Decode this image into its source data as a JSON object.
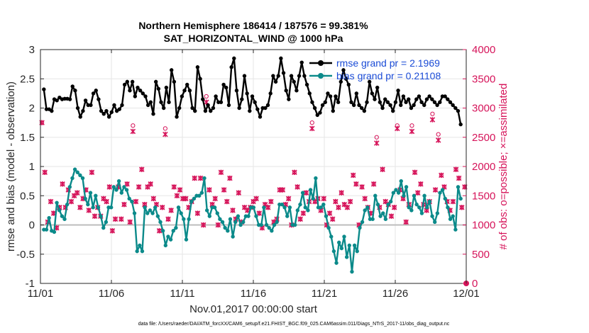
{
  "chart_data": {
    "type": "line",
    "title_line1": "Northern Hemisphere 186414 / 187576 = 99.381%",
    "title_line2": "SAT_HORIZONTAL_WIND @ 1000 hPa",
    "xlabel": "Nov.01,2017 00:00:00 start",
    "ylabel_left": "rmse and bias (model - observation)",
    "ylabel_right": "# of obs: o=possible; ×=assimilated",
    "footnote": "data file: /Users/raeder/DAI/ATM_forcXX/CAM6_setup/f.e21.FHIST_BGC.f09_025.CAM6assim.011/Diags_NTrS_2017-11/obs_diag_output.nc",
    "x_ticks": [
      "11/01",
      "11/06",
      "11/11",
      "11/16",
      "11/21",
      "11/26",
      "12/01"
    ],
    "x_tick_days": [
      0,
      5,
      10,
      15,
      20,
      25,
      30
    ],
    "xlim": [
      0,
      30
    ],
    "y_left_ticks": [
      "-1",
      "-0.5",
      "0",
      "0.5",
      "1",
      "1.5",
      "2",
      "2.5",
      "3"
    ],
    "y_left_values": [
      -1,
      -0.5,
      0,
      0.5,
      1,
      1.5,
      2,
      2.5,
      3
    ],
    "ylim_left": [
      -1,
      3
    ],
    "y_right_ticks": [
      "0",
      "500",
      "1000",
      "1500",
      "2000",
      "2500",
      "3000",
      "3500",
      "4000"
    ],
    "y_right_values": [
      0,
      500,
      1000,
      1500,
      2000,
      2500,
      3000,
      3500,
      4000
    ],
    "ylim_right": [
      0,
      4000
    ],
    "legend": [
      {
        "name": "rmse grand pr = 2.1969",
        "color": "#000000"
      },
      {
        "name": "bias grand pr = 0.21108",
        "color": "#008080"
      }
    ],
    "colors": {
      "rmse": "#000000",
      "bias": "#0b8a8a",
      "obs": "#d6145a",
      "zero_line": "#bdbdbd",
      "grid": "#e6e6e6"
    },
    "series": [
      {
        "name": "rmse",
        "values": [
          2.32,
          1.98,
          1.98,
          1.95,
          2.15,
          2.13,
          2.18,
          2.15,
          2.16,
          2.16,
          2.15,
          2.37,
          2.3,
          2.0,
          1.85,
          1.95,
          2.13,
          2.05,
          2.05,
          2.25,
          2.3,
          2.15,
          1.95,
          1.9,
          1.95,
          1.85,
          1.93,
          2.05,
          1.95,
          1.98,
          2.05,
          2.4,
          2.45,
          2.3,
          2.45,
          2.2,
          2.35,
          2.3,
          2.25,
          2.2,
          2.05,
          2.1,
          1.9,
          2.45,
          2.33,
          2.1,
          2.0,
          2.35,
          2.1,
          2.65,
          2.45,
          1.85,
          2.0,
          2.2,
          2.3,
          2.4,
          2.3,
          2.0,
          1.95,
          2.7,
          2.5,
          2.15,
          1.95,
          2.05,
          1.95,
          2.0,
          2.2,
          2.1,
          2.1,
          2.4,
          2.35,
          2.05,
          2.7,
          2.85,
          2.3,
          2.0,
          2.15,
          2.55,
          2.25,
          1.95,
          2.2,
          2.1,
          1.98,
          1.85,
          2.0,
          2.0,
          2.05,
          2.25,
          2.55,
          2.45,
          2.55,
          2.85,
          2.6,
          2.3,
          2.15,
          2.55,
          2.45,
          2.3,
          2.55,
          2.78,
          2.55,
          2.4,
          2.25,
          2.1,
          2.0,
          1.88,
          1.92,
          2.05,
          2.1,
          2.25,
          2.2,
          1.95,
          2.2,
          2.1,
          2.45,
          2.65,
          2.5,
          2.4,
          2.1,
          2.05,
          2.25,
          2.05,
          2.0,
          1.95,
          2.1,
          2.45,
          2.25,
          2.15,
          2.35,
          2.1,
          2.0,
          2.15,
          2.1,
          2.05,
          1.95,
          2.1,
          2.3,
          2.05,
          2.2,
          2.1,
          2.15,
          2.0,
          2.05,
          2.15,
          2.2,
          2.1,
          2.05,
          2.15,
          2.2,
          2.15,
          2.1,
          2.05,
          2.1,
          2.2,
          2.2,
          2.15,
          2.1,
          2.05,
          2.0,
          1.95,
          1.72
        ]
      },
      {
        "name": "bias",
        "values": [
          -0.08,
          -0.08,
          0.12,
          -0.1,
          -0.12,
          0.38,
          0.25,
          0.15,
          0.1,
          0.35,
          0.65,
          0.8,
          0.95,
          0.9,
          0.85,
          0.8,
          0.45,
          0.35,
          0.55,
          0.3,
          0.5,
          0.3,
          0.15,
          -0.05,
          0.05,
          0.3,
          0.3,
          0.65,
          0.6,
          0.75,
          0.55,
          0.65,
          0.6,
          0.45,
          0.4,
          0.2,
          -0.45,
          -0.35,
          -0.45,
          0.3,
          0.2,
          0.25,
          0.2,
          0.3,
          0.15,
          0.05,
          -0.1,
          -0.35,
          -0.2,
          -0.25,
          -0.1,
          -0.05,
          0.3,
          0.2,
          0.1,
          -0.25,
          0.1,
          0.4,
          0.45,
          0.5,
          0.5,
          0.55,
          0.8,
          0.25,
          0.15,
          0.3,
          0.3,
          0.2,
          0.1,
          0.05,
          -0.05,
          -0.1,
          0.1,
          -0.2,
          0.05,
          0.15,
          0.0,
          0.05,
          0.15,
          0.15,
          0.3,
          0.3,
          0.15,
          0.0,
          0.0,
          0.3,
          0.0,
          -0.05,
          -0.1,
          0.0,
          0.05,
          0.35,
          0.35,
          0.3,
          0.15,
          0.3,
          0.0,
          0.0,
          0.25,
          0.35,
          0.55,
          0.3,
          0.25,
          0.6,
          0.45,
          0.8,
          0.3,
          0.3,
          0.35,
          0.15,
          -0.05,
          -0.2,
          -0.45,
          -0.65,
          -0.3,
          -0.4,
          -0.2,
          -0.55,
          -0.35,
          -0.8,
          -0.35,
          -0.45,
          -0.05,
          0.05,
          0.25,
          0.3,
          0.1,
          0.1,
          0.5,
          0.35,
          0.15,
          0.2,
          0.1,
          0.35,
          0.4,
          0.55,
          0.6,
          0.55,
          0.75,
          0.5,
          0.65,
          0.3,
          0.25,
          0.5,
          0.35,
          0.3,
          0.2,
          0.5,
          0.3,
          0.4,
          0.15,
          0.05,
          0.2,
          0.55,
          0.6,
          0.45,
          0.3,
          0.1,
          0.15,
          -0.08,
          0.65,
          0.45
        ]
      }
    ],
    "obs_possible": [
      2750,
      1900,
      1050,
      1400,
      1200,
      950,
      1300,
      1700,
      1300,
      1600,
      1400,
      1500,
      1550,
      1300,
      1450,
      1600,
      1250,
      1900,
      1150,
      1300,
      1150,
      1450,
      1400,
      1650,
      900,
      1100,
      1650,
      1100,
      1350,
      1700,
      1050,
      2700,
      1400,
      1650,
      1950,
      1350,
      1650,
      1700,
      1450,
      1350,
      900,
      1300,
      2650,
      1100,
      1250,
      1650,
      1500,
      1600,
      1450,
      1450,
      1300,
      1400,
      1800,
      1200,
      1800,
      1000,
      3200,
      1600,
      1350,
      1450,
      1000,
      1900,
      1600,
      1400,
      1800,
      1250,
      1100,
      1550,
      1050,
      1300,
      1250,
      1300,
      1400,
      1450,
      1200,
      950,
      1350,
      1300,
      1400,
      1050,
      1100,
      1600,
      1600,
      1350,
      1450,
      1000,
      1900,
      1650,
      1100,
      1200,
      1550,
      1400,
      2750,
      1400,
      1450,
      1250,
      1450,
      1000,
      1200,
      1100,
      1400,
      1300,
      1550,
      1350,
      1300,
      1400,
      1850,
      1700,
      1000,
      1650,
      1450,
      1300,
      1200,
      1700,
      2500,
      1300,
      1950,
      1400,
      1350,
      1150,
      1300,
      2700,
      1600,
      1450,
      1050,
      1350,
      2700,
      1900,
      1550,
      1700,
      1350,
      1250,
      1400,
      2900,
      1600,
      2550,
      1850,
      1650,
      1400,
      1250,
      1400,
      1950,
      1800,
      1300,
      1650
    ],
    "obs_assimilated": [
      2750,
      1900,
      1050,
      1400,
      1200,
      950,
      1300,
      1700,
      1300,
      1600,
      1400,
      1500,
      1550,
      1300,
      1450,
      1600,
      1250,
      1900,
      1150,
      1300,
      1150,
      1450,
      1400,
      1650,
      900,
      1100,
      1650,
      1100,
      1350,
      1700,
      1050,
      2600,
      1400,
      1650,
      1950,
      1350,
      1650,
      1700,
      1450,
      1350,
      900,
      1300,
      2550,
      1100,
      1250,
      1650,
      1500,
      1600,
      1450,
      1450,
      1300,
      1400,
      1800,
      1200,
      1800,
      1000,
      3100,
      1600,
      1350,
      1450,
      1000,
      1900,
      1600,
      1400,
      1800,
      1250,
      1100,
      1550,
      1050,
      1300,
      1250,
      1300,
      1400,
      1450,
      1200,
      950,
      1350,
      1300,
      1400,
      1050,
      1100,
      1600,
      1600,
      1350,
      1450,
      1000,
      1900,
      1650,
      1100,
      1200,
      1550,
      1400,
      2650,
      1400,
      1450,
      1250,
      1450,
      1000,
      1200,
      1100,
      1400,
      1300,
      1550,
      1350,
      1300,
      1400,
      1850,
      1700,
      1000,
      1650,
      1450,
      1300,
      1200,
      1700,
      2400,
      1300,
      1950,
      1400,
      1350,
      1150,
      1300,
      2650,
      1600,
      1450,
      1050,
      1350,
      2600,
      1900,
      1550,
      1700,
      1350,
      1250,
      1400,
      2800,
      1600,
      2450,
      1850,
      1650,
      1400,
      1250,
      1400,
      1950,
      1800,
      1300,
      1650
    ]
  }
}
